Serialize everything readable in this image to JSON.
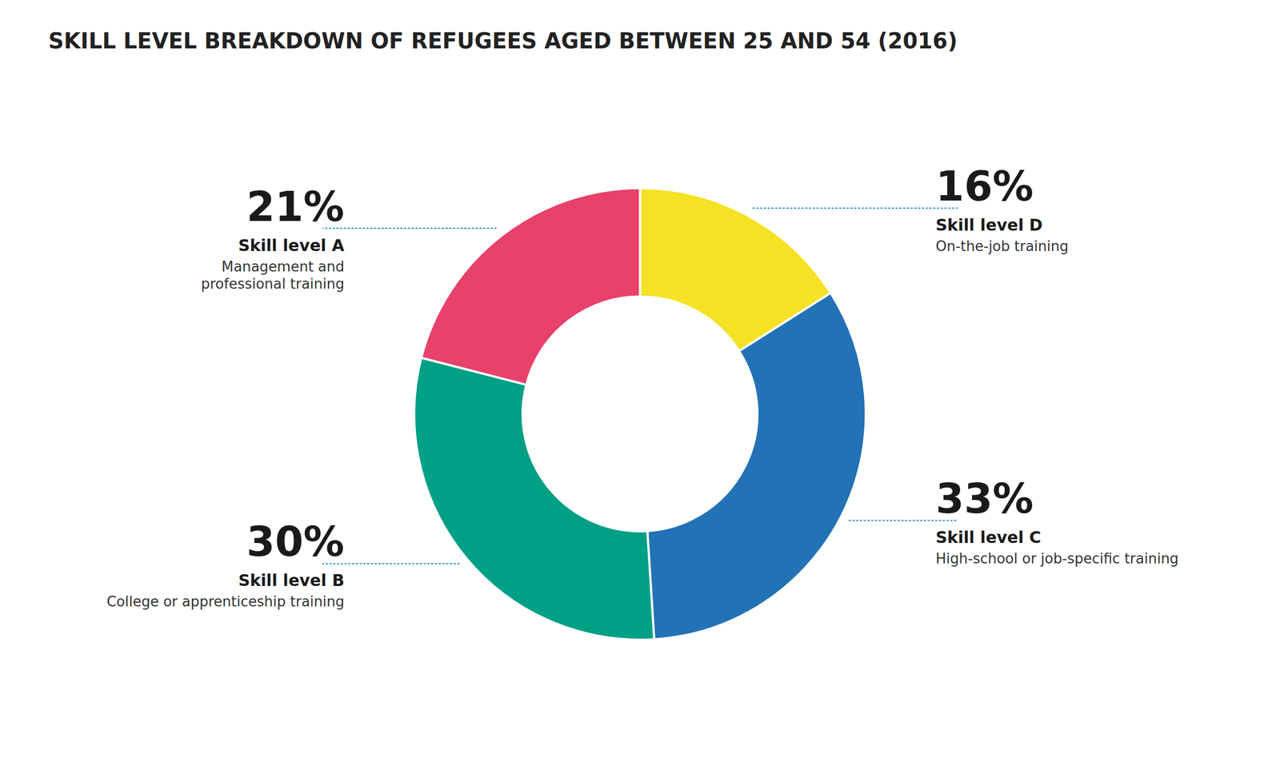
{
  "chart_data": {
    "type": "donut",
    "title": "SKILL LEVEL BREAKDOWN OF REFUGEES AGED BETWEEN 25 AND 54 (2016)",
    "categories": [
      "Skill level D",
      "Skill level C",
      "Skill level B",
      "Skill level A"
    ],
    "values": [
      16,
      33,
      30,
      21
    ],
    "value_labels": [
      "16%",
      "33%",
      "30%",
      "21%"
    ],
    "annotations": [
      "On-the-job training",
      "High-school or job-specific training",
      "College or apprenticeship training",
      "Management and\nprofessional training"
    ],
    "colors": [
      "#f5e224",
      "#2372b6",
      "#00a086",
      "#e8416a"
    ],
    "data_labels": true
  }
}
